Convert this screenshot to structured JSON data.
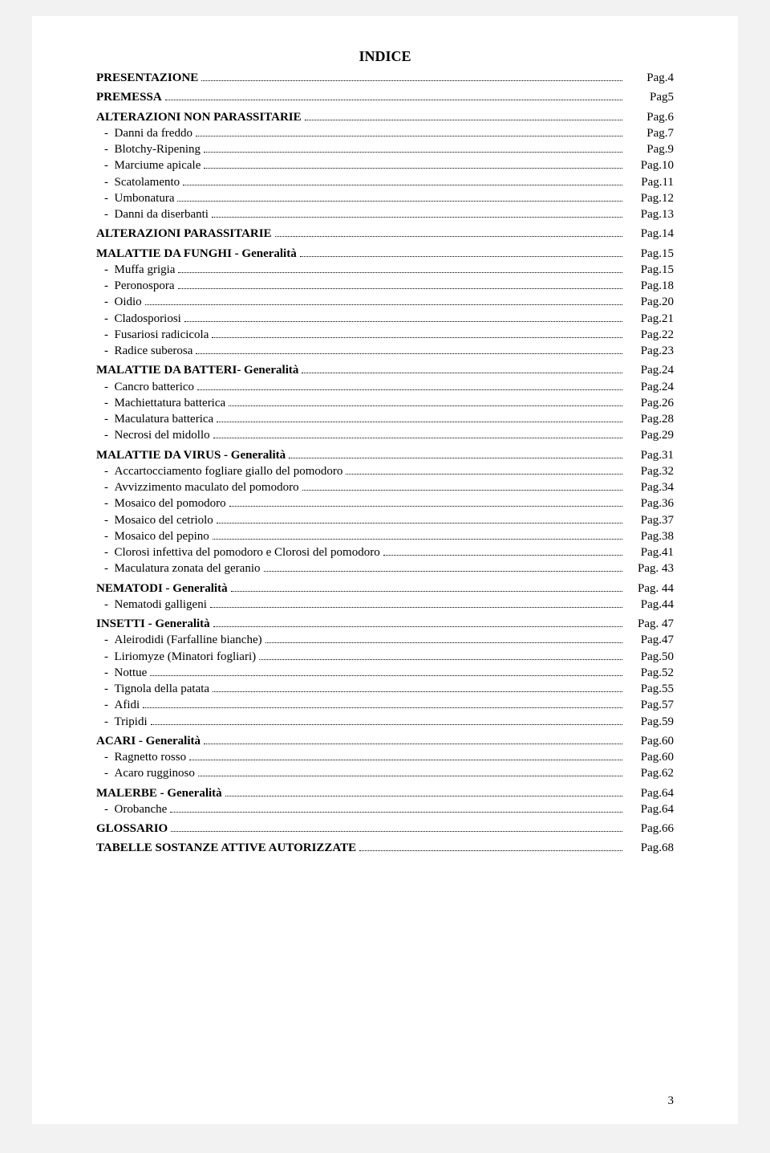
{
  "page_title": "INDICE",
  "page_number": "3",
  "colors": {
    "background": "#ffffff",
    "text": "#000000",
    "page_bg": "#f2f2f2"
  },
  "typography": {
    "family": "Times New Roman",
    "title_fontsize": 18,
    "body_fontsize": 15,
    "line_height": 1.35
  },
  "sections": [
    {
      "head": "PRESENTAZIONE",
      "head_page": "Pag.4",
      "items": []
    },
    {
      "head": "PREMESSA",
      "head_page": "Pag5",
      "items": []
    },
    {
      "head": "ALTERAZIONI NON PARASSITARIE",
      "head_page": "Pag.6",
      "items": [
        {
          "label": "Danni  da freddo",
          "page": "Pag.7"
        },
        {
          "label": "Blotchy-Ripening",
          "page": "Pag.9"
        },
        {
          "label": "Marciume  apicale",
          "page": "Pag.10"
        },
        {
          "label": "Scatolamento",
          "page": "Pag.11"
        },
        {
          "label": "Umbonatura",
          "page": "Pag.12"
        },
        {
          "label": "Danni da diserbanti",
          "page": "Pag.13"
        }
      ]
    },
    {
      "head": "ALTERAZIONI PARASSITARIE",
      "head_page": "Pag.14",
      "items": []
    },
    {
      "head": "MALATTIE  DA  FUNGHI - Generalità",
      "head_page": "Pag.15",
      "items": [
        {
          "label": "Muffa  grigia",
          "page": "Pag.15"
        },
        {
          "label": "Peronospora",
          "page": "Pag.18"
        },
        {
          "label": "Oidio",
          "page": "Pag.20"
        },
        {
          "label": "Cladosporiosi",
          "page": "Pag.21"
        },
        {
          "label": "Fusariosi  radicicola",
          "page": "Pag.22"
        },
        {
          "label": "Radice  suberosa",
          "page": "Pag.23"
        }
      ]
    },
    {
      "head": "MALATTIE  DA BATTERI- Generalità",
      "head_page": "Pag.24",
      "items": [
        {
          "label": "Cancro  batterico",
          "page": "Pag.24"
        },
        {
          "label": "Machiettatura  batterica",
          "page": "Pag.26"
        },
        {
          "label": "Maculatura  batterica",
          "page": "Pag.28"
        },
        {
          "label": "Necrosi  del  midollo",
          "page": "Pag.29"
        }
      ]
    },
    {
      "head": "MALATTIE  DA VIRUS - Generalità",
      "head_page": "Pag.31",
      "items": [
        {
          "label": "Accartocciamento  fogliare  giallo  del pomodoro",
          "page": "Pag.32"
        },
        {
          "label": "Avvizzimento  maculato  del  pomodoro",
          "page": "Pag.34"
        },
        {
          "label": "Mosaico  del  pomodoro",
          "page": "Pag.36"
        },
        {
          "label": "Mosaico  del  cetriolo",
          "page": "Pag.37"
        },
        {
          "label": "Mosaico del pepino",
          "page": "Pag.38"
        },
        {
          "label": "Clorosi infettiva del pomodoro e Clorosi del pomodoro",
          "page": "Pag.41"
        },
        {
          "label": "Maculatura zonata del geranio",
          "page": "Pag.       43",
          "dotsSuffix": "Pag."
        }
      ]
    },
    {
      "head": "NEMATODI - Generalità",
      "head_page": "Pag. 44",
      "items": [
        {
          "label": "Nematodi  galligeni",
          "page": "Pag.44"
        }
      ]
    },
    {
      "head": "INSETTI - Generalità",
      "head_page": "Pag. 47",
      "items": [
        {
          "label": "Aleirodidi (Farfalline  bianche)",
          "page": "Pag.47"
        },
        {
          "label": "Liriomyze (Minatori  fogliari)",
          "page": "Pag.50"
        },
        {
          "label": "Nottue",
          "page": "Pag.52"
        },
        {
          "label": "Tignola della patata",
          "page": "Pag.55"
        },
        {
          "label": "Afidi",
          "page": "Pag.57"
        },
        {
          "label": "Tripidi",
          "page": "Pag.59"
        }
      ]
    },
    {
      "head": "ACARI - Generalità",
      "head_page": "Pag.60",
      "items": [
        {
          "label": "Ragnetto rosso",
          "page": "Pag.60"
        },
        {
          "label": "Acaro  rugginoso",
          "page": "Pag.62"
        }
      ]
    },
    {
      "head": "MALERBE - Generalità",
      "head_page": "Pag.64",
      "items": [
        {
          "label": "Orobanche",
          "page": "Pag.64"
        }
      ]
    },
    {
      "head": "GLOSSARIO",
      "head_page": "Pag.66",
      "items": []
    },
    {
      "head": "TABELLE SOSTANZE ATTIVE AUTORIZZATE",
      "head_page": "Pag.68",
      "items": []
    }
  ]
}
